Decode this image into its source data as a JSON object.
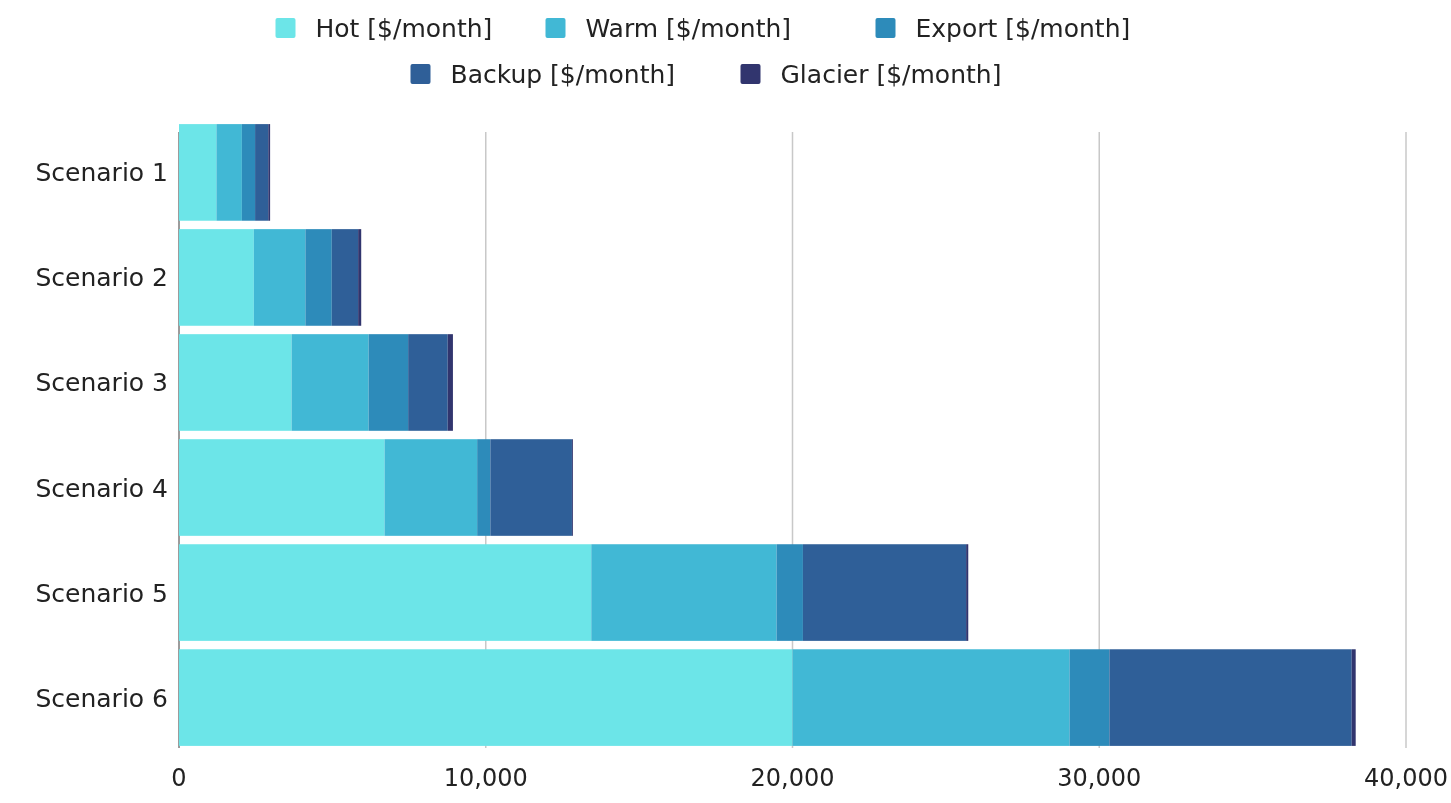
{
  "chart_data": {
    "type": "bar",
    "orientation": "horizontal",
    "stacked": true,
    "categories": [
      "Scenario 1",
      "Scenario 2",
      "Scenario 3",
      "Scenario 4",
      "Scenario 5",
      "Scenario 6"
    ],
    "series": [
      {
        "name": "Hot [$/month]",
        "color": "#6ce5e8",
        "values": [
          1220,
          2440,
          3670,
          6700,
          13440,
          20000
        ]
      },
      {
        "name": "Warm [$/month]",
        "color": "#41b8d5",
        "values": [
          830,
          1680,
          2510,
          3020,
          6040,
          9030
        ]
      },
      {
        "name": "Export [$/month]",
        "color": "#2d8bba",
        "values": [
          430,
          860,
          1290,
          430,
          860,
          1300
        ]
      },
      {
        "name": "Backup [$/month]",
        "color": "#2f5f98",
        "values": [
          430,
          860,
          1290,
          2660,
          5320,
          7900
        ]
      },
      {
        "name": "Glacier [$/month]",
        "color": "#31356e",
        "values": [
          60,
          100,
          170,
          30,
          70,
          130
        ]
      }
    ],
    "xlim": [
      0,
      40000
    ],
    "xticks": [
      {
        "value": 0,
        "label": "0"
      },
      {
        "value": 10000,
        "label": "10,000"
      },
      {
        "value": 20000,
        "label": "20,000"
      },
      {
        "value": 30000,
        "label": "30,000"
      },
      {
        "value": 40000,
        "label": "40,000"
      }
    ],
    "grid": "x",
    "legend": "top"
  }
}
